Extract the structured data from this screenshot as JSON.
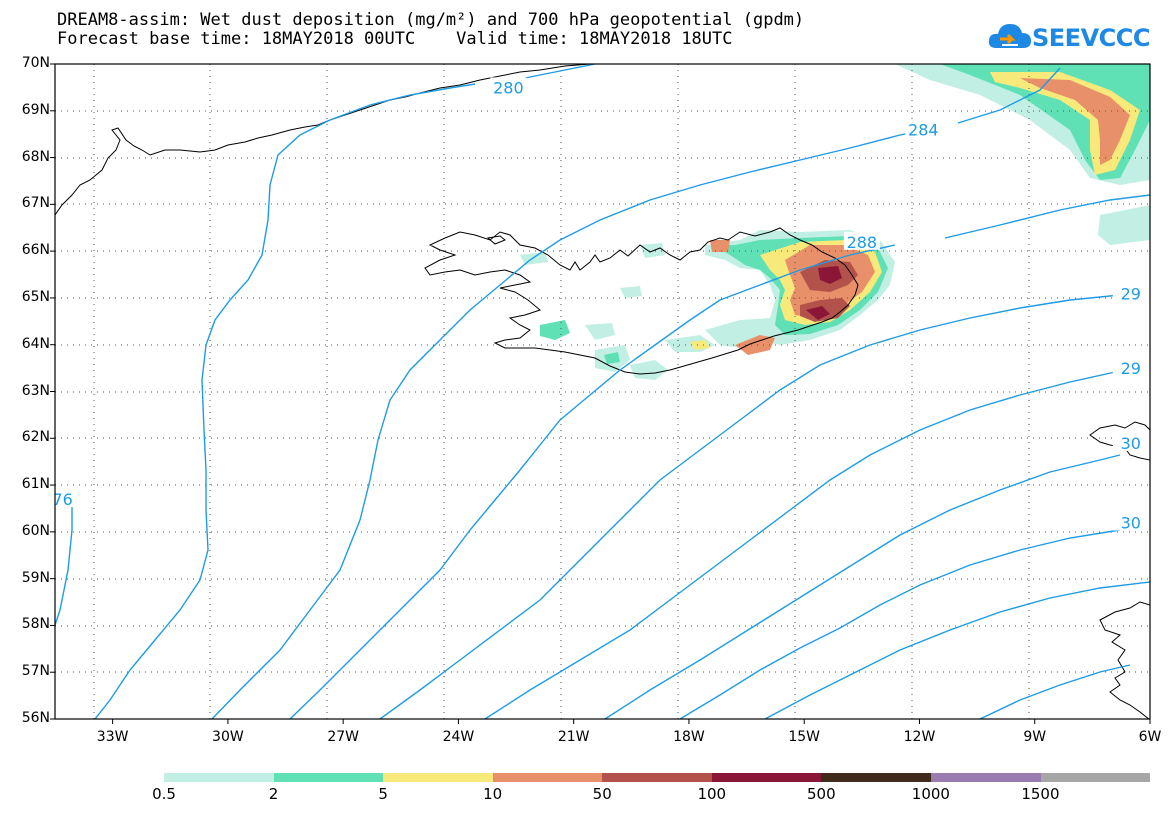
{
  "title": {
    "line1": "DREAM8-assim: Wet dust deposition (mg/m²) and 700 hPa geopotential (gpdm)",
    "line2": "Forecast base time: 18MAY2018 00UTC    Valid time: 18MAY2018 18UTC"
  },
  "logo": {
    "text": "SEEVCCC",
    "icon": "cloud-icon",
    "color": "#1e88e5"
  },
  "map": {
    "lon_range": [
      -34.5,
      -6
    ],
    "lat_range": [
      56,
      70
    ],
    "lat_labels": [
      "70N",
      "69N",
      "68N",
      "67N",
      "66N",
      "65N",
      "64N",
      "63N",
      "62N",
      "61N",
      "60N",
      "59N",
      "58N",
      "57N",
      "56N"
    ],
    "lon_labels": [
      "33W",
      "30W",
      "27W",
      "24W",
      "21W",
      "18W",
      "15W",
      "12W",
      "9W",
      "6W"
    ],
    "grid": "dotted",
    "contour_color": "#1e9be6",
    "contour_labels": [
      {
        "text": "280",
        "lon": -22.7,
        "lat": 69.5
      },
      {
        "text": "284",
        "lon": -11.9,
        "lat": 68.6
      },
      {
        "text": "288",
        "lon": -13.5,
        "lat": 66.2
      },
      {
        "text": "29",
        "lon": -6.5,
        "lat": 65.1
      },
      {
        "text": "29",
        "lon": -6.5,
        "lat": 63.5
      },
      {
        "text": "30",
        "lon": -6.5,
        "lat": 61.9
      },
      {
        "text": "30",
        "lon": -6.5,
        "lat": 60.2
      },
      {
        "text": "76",
        "lon": -34.3,
        "lat": 60.7
      }
    ]
  },
  "legend": {
    "colors": [
      "#c1efe4",
      "#5fe0b5",
      "#f8ea7a",
      "#e8906a",
      "#b3524b",
      "#8a1737",
      "#3f2a1b",
      "#9a7bb0",
      "#a6a6a6"
    ],
    "labels": [
      "0.5",
      "2",
      "5",
      "10",
      "50",
      "100",
      "500",
      "1000",
      "1500"
    ]
  }
}
